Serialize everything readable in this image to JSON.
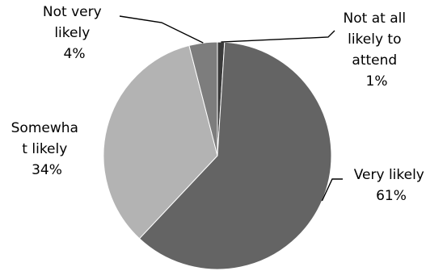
{
  "chart_data": {
    "type": "pie",
    "title": "",
    "categories": [
      "Not at all likely to attend",
      "Very likely",
      "Somewhat likely",
      "Not very likely"
    ],
    "values": [
      1,
      61,
      34,
      4
    ],
    "label_lines": [
      [
        "Not at all",
        "likely to",
        "attend",
        "1%"
      ],
      [
        "Very likely",
        "61%"
      ],
      [
        "Somewha",
        "t likely",
        "34%"
      ],
      [
        "Not very",
        "likely",
        "4%"
      ]
    ],
    "colors": [
      "#3a3a3a",
      "#646464",
      "#b3b3b3",
      "#7d7d7d"
    ],
    "legend": "none"
  }
}
